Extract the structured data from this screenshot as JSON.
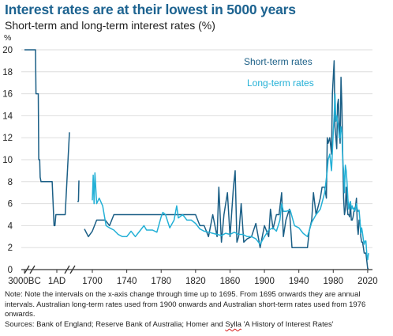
{
  "header": {
    "title": "Interest rates are at their lowest in 5000 years",
    "subtitle": "Short-term and long-term interest rates (%)"
  },
  "footer": {
    "note": "Note: Note the intervals on the x-axis change through time up to 1695. From 1695 onwards they are annual intervals. Australian long-term rates used from 1900 onwards and Australian short-term rates used from 1976 onwards.",
    "sources_prefix": "Sources: Bank of England; Reserve Bank of Australia; Homer and ",
    "sources_name": "Sylla",
    "sources_suffix": " 'A History of Interest Rates'"
  },
  "colors": {
    "short": "#1b5f86",
    "long": "#23b0d6",
    "axis": "#333333",
    "grid": "#dddddd"
  },
  "chart_data": {
    "type": "line",
    "title": "Interest rates are at their lowest in 5000 years",
    "subtitle": "Short-term and long-term interest rates (%)",
    "ylabel": "%",
    "ylim": [
      0,
      20
    ],
    "yticks": [
      0,
      2,
      4,
      6,
      8,
      10,
      12,
      14,
      16,
      18,
      20
    ],
    "xticks": [
      "3000BC",
      "1AD",
      "1700",
      "1740",
      "1780",
      "1820",
      "1860",
      "1900",
      "1940",
      "1980",
      "2020"
    ],
    "grid": "horizontal",
    "legend": "inline-top-right",
    "series": [
      {
        "name": "Short-term rates",
        "color": "#1b5f86",
        "segments": [
          [
            [
              "3000BC",
              20
            ],
            [
              "2500BC",
              20
            ],
            [
              "2300BC",
              20
            ],
            [
              "2250BC",
              16
            ],
            [
              "2000BC",
              16
            ],
            [
              "1950BC",
              10
            ],
            [
              "1850BC",
              10
            ],
            [
              "1800BC",
              8.4
            ],
            [
              "1700BC",
              8
            ],
            [
              "1200BC",
              8
            ],
            [
              "800BC",
              8
            ],
            [
              "500BC",
              8
            ],
            [
              "300BC",
              4
            ],
            [
              "200BC",
              4
            ],
            [
              "100BC",
              5
            ],
            [
              "1AD",
              5
            ],
            [
              "200",
              5
            ],
            [
              "300",
              12.5
            ]
          ],
          [
            [
              "1100",
              6.2
            ],
            [
              "1200",
              6.2
            ],
            [
              "1250",
              8.1
            ]
          ],
          [
            [
              "1690",
              3.7
            ],
            [
              "1695",
              3.0
            ],
            [
              "1700",
              3.5
            ],
            [
              "1705",
              4.5
            ],
            [
              "1715",
              4.5
            ],
            [
              "1720",
              4.0
            ],
            [
              "1725",
              5.0
            ],
            [
              "1760",
              5.0
            ],
            [
              "1763",
              5.0
            ],
            [
              "1770",
              5.0
            ],
            [
              "1780",
              5.0
            ],
            [
              "1790",
              5.0
            ],
            [
              "1800",
              5.0
            ],
            [
              "1810",
              5.0
            ],
            [
              "1820",
              5.0
            ],
            [
              "1825",
              4.0
            ],
            [
              "1830",
              4.0
            ],
            [
              "1835",
              3.0
            ],
            [
              "1840",
              5.0
            ],
            [
              "1845",
              3.0
            ],
            [
              "1847",
              7.5
            ],
            [
              "1850",
              2.5
            ],
            [
              "1853",
              5.0
            ],
            [
              "1857",
              7.0
            ],
            [
              "1860",
              3.0
            ],
            [
              "1864",
              7.5
            ],
            [
              "1866",
              9.0
            ],
            [
              "1868",
              2.5
            ],
            [
              "1870",
              3.0
            ],
            [
              "1873",
              6.0
            ],
            [
              "1876",
              2.5
            ],
            [
              "1880",
              2.8
            ],
            [
              "1885",
              3.0
            ],
            [
              "1890",
              4.2
            ],
            [
              "1895",
              2.0
            ],
            [
              "1900",
              4.0
            ],
            [
              "1905",
              3.0
            ],
            [
              "1907",
              5.5
            ],
            [
              "1910",
              3.7
            ],
            [
              "1914",
              5.0
            ],
            [
              "1917",
              5.0
            ],
            [
              "1920",
              7.0
            ],
            [
              "1922",
              3.0
            ],
            [
              "1925",
              4.5
            ],
            [
              "1929",
              5.5
            ],
            [
              "1932",
              2.0
            ],
            [
              "1935",
              2.0
            ],
            [
              "1940",
              2.0
            ],
            [
              "1945",
              2.0
            ],
            [
              "1950",
              2.0
            ],
            [
              "1952",
              3.5
            ],
            [
              "1955",
              4.5
            ],
            [
              "1957",
              7.0
            ],
            [
              "1960",
              5.0
            ],
            [
              "1965",
              6.5
            ],
            [
              "1967",
              7.5
            ],
            [
              "1970",
              7.5
            ],
            [
              "1972",
              6.5
            ],
            [
              "1973",
              12.0
            ],
            [
              "1974",
              11.5
            ],
            [
              "1976",
              12.0
            ],
            [
              "1978",
              10.5
            ],
            [
              "1979",
              16.0
            ],
            [
              "1980",
              17.5
            ],
            [
              "1981",
              19.0
            ],
            [
              "1982",
              13.0
            ],
            [
              "1983",
              12.0
            ],
            [
              "1984",
              11.0
            ],
            [
              "1985",
              15.0
            ],
            [
              "1986",
              15.5
            ],
            [
              "1987",
              13.0
            ],
            [
              "1988",
              11.5
            ],
            [
              "1989",
              17.5
            ],
            [
              "1990",
              15.0
            ],
            [
              "1991",
              10.5
            ],
            [
              "1992",
              6.5
            ],
            [
              "1993",
              5.0
            ],
            [
              "1994",
              5.5
            ],
            [
              "1995",
              7.5
            ],
            [
              "1996",
              6.0
            ],
            [
              "1997",
              5.0
            ],
            [
              "1998",
              5.0
            ],
            [
              "1999",
              4.8
            ],
            [
              "2000",
              6.0
            ],
            [
              "2001",
              4.5
            ],
            [
              "2002",
              4.5
            ],
            [
              "2003",
              4.8
            ],
            [
              "2004",
              5.3
            ],
            [
              "2005",
              5.5
            ],
            [
              "2006",
              5.8
            ],
            [
              "2007",
              6.5
            ],
            [
              "2008",
              4.0
            ],
            [
              "2009",
              3.2
            ],
            [
              "2010",
              4.5
            ],
            [
              "2011",
              4.5
            ],
            [
              "2012",
              3.0
            ],
            [
              "2013",
              2.5
            ],
            [
              "2014",
              2.5
            ],
            [
              "2015",
              2.0
            ],
            [
              "2016",
              1.5
            ],
            [
              "2017",
              1.5
            ],
            [
              "2018",
              1.5
            ],
            [
              "2019",
              0.8
            ],
            [
              "2020",
              0.1
            ],
            [
              "2021",
              0.1
            ]
          ]
        ]
      },
      {
        "name": "Long-term rates",
        "color": "#23b0d6",
        "segments": [
          [
            [
              "1700",
              6.3
            ],
            [
              "1701",
              8.6
            ],
            [
              "1702",
              6.0
            ],
            [
              "1703",
              8.8
            ],
            [
              "1705",
              6.0
            ],
            [
              "1708",
              6.5
            ],
            [
              "1712",
              5.8
            ],
            [
              "1716",
              4.0
            ],
            [
              "1720",
              3.8
            ],
            [
              "1725",
              3.6
            ],
            [
              "1730",
              3.2
            ],
            [
              "1735",
              3.0
            ],
            [
              "1740",
              3.0
            ],
            [
              "1745",
              3.5
            ],
            [
              "1750",
              3.0
            ],
            [
              "1755",
              3.5
            ],
            [
              "1760",
              4.0
            ],
            [
              "1763",
              3.6
            ],
            [
              "1770",
              3.6
            ],
            [
              "1775",
              3.4
            ],
            [
              "1780",
              4.8
            ],
            [
              "1782",
              5.2
            ],
            [
              "1785",
              5.0
            ],
            [
              "1790",
              3.8
            ],
            [
              "1795",
              4.5
            ],
            [
              "1798",
              5.8
            ],
            [
              "1800",
              4.7
            ],
            [
              "1805",
              5.0
            ],
            [
              "1810",
              4.5
            ],
            [
              "1815",
              4.5
            ],
            [
              "1820",
              4.2
            ],
            [
              "1825",
              3.7
            ],
            [
              "1830",
              3.5
            ],
            [
              "1835",
              3.4
            ],
            [
              "1840",
              3.3
            ],
            [
              "1845",
              3.2
            ],
            [
              "1850",
              3.1
            ],
            [
              "1855",
              3.3
            ],
            [
              "1860",
              3.2
            ],
            [
              "1865",
              3.4
            ],
            [
              "1870",
              3.2
            ],
            [
              "1875",
              3.2
            ],
            [
              "1880",
              3.0
            ],
            [
              "1885",
              3.0
            ],
            [
              "1890",
              2.8
            ],
            [
              "1895",
              2.3
            ],
            [
              "1900",
              3.0
            ],
            [
              "1905",
              3.6
            ],
            [
              "1910",
              3.8
            ],
            [
              "1914",
              3.5
            ],
            [
              "1918",
              4.5
            ],
            [
              "1920",
              6.0
            ],
            [
              "1922",
              5.3
            ],
            [
              "1925",
              5.3
            ],
            [
              "1930",
              5.4
            ],
            [
              "1935",
              4.0
            ],
            [
              "1940",
              3.8
            ],
            [
              "1945",
              3.3
            ],
            [
              "1950",
              3.0
            ],
            [
              "1955",
              4.3
            ],
            [
              "1960",
              5.0
            ],
            [
              "1965",
              5.5
            ],
            [
              "1970",
              7.0
            ],
            [
              "1973",
              9.0
            ],
            [
              "1974",
              10.0
            ],
            [
              "1976",
              10.5
            ],
            [
              "1978",
              9.0
            ],
            [
              "1980",
              12.5
            ],
            [
              "1981",
              14.0
            ],
            [
              "1982",
              16.0
            ],
            [
              "1983",
              13.5
            ],
            [
              "1984",
              14.0
            ],
            [
              "1985",
              13.5
            ],
            [
              "1986",
              13.0
            ],
            [
              "1987",
              12.0
            ],
            [
              "1988",
              12.0
            ],
            [
              "1989",
              13.0
            ],
            [
              "1990",
              12.5
            ],
            [
              "1991",
              10.0
            ],
            [
              "1992",
              9.0
            ],
            [
              "1993",
              7.0
            ],
            [
              "1994",
              9.5
            ],
            [
              "1995",
              9.0
            ],
            [
              "1996",
              8.0
            ],
            [
              "1997",
              6.5
            ],
            [
              "1998",
              5.5
            ],
            [
              "1999",
              6.0
            ],
            [
              "2000",
              6.2
            ],
            [
              "2001",
              5.5
            ],
            [
              "2002",
              5.8
            ],
            [
              "2003",
              5.5
            ],
            [
              "2004",
              5.6
            ],
            [
              "2005",
              5.3
            ],
            [
              "2006",
              5.6
            ],
            [
              "2007",
              6.0
            ],
            [
              "2008",
              5.5
            ],
            [
              "2009",
              5.3
            ],
            [
              "2010",
              5.4
            ],
            [
              "2011",
              4.5
            ],
            [
              "2012",
              3.3
            ],
            [
              "2013",
              3.8
            ],
            [
              "2014",
              3.3
            ],
            [
              "2015",
              2.7
            ],
            [
              "2016",
              2.3
            ],
            [
              "2017",
              2.6
            ],
            [
              "2018",
              2.6
            ],
            [
              "2019",
              1.4
            ],
            [
              "2020",
              0.9
            ],
            [
              "2021",
              1.5
            ]
          ]
        ]
      }
    ]
  }
}
